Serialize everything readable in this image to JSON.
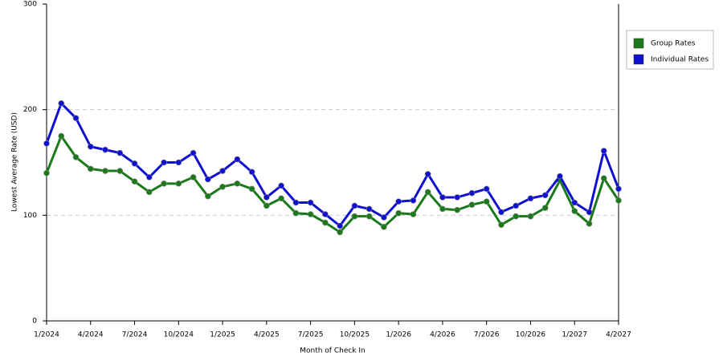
{
  "chart_data": {
    "type": "line",
    "x_label": "Month of Check In",
    "y_label": "Lowest Average Rate (USD)",
    "categories": [
      "1/2024",
      null,
      null,
      "4/2024",
      null,
      null,
      "7/2024",
      null,
      null,
      "10/2024",
      null,
      null,
      "1/2025",
      null,
      null,
      "4/2025",
      null,
      null,
      "7/2025",
      null,
      null,
      "10/2025",
      null,
      null,
      "1/2026",
      null,
      null,
      "4/2026",
      null,
      null,
      "7/2026",
      null,
      null,
      "10/2026",
      null,
      null,
      "1/2027",
      null,
      null,
      "4/2027"
    ],
    "series": [
      {
        "name": "Group Rates",
        "color": "#1a7a1a",
        "values": [
          140,
          175,
          155,
          144,
          142,
          142,
          132,
          122,
          130,
          130,
          136,
          118,
          127,
          130,
          125,
          109,
          116,
          102,
          101,
          93,
          84,
          99,
          99,
          89,
          102,
          101,
          122,
          106,
          105,
          110,
          113,
          91,
          99,
          99,
          107,
          133,
          104,
          92,
          135,
          114
        ]
      },
      {
        "name": "Individual Rates",
        "color": "#1010d0",
        "values": [
          168,
          206,
          192,
          165,
          162,
          159,
          149,
          136,
          150,
          150,
          159,
          134,
          142,
          153,
          141,
          117,
          128,
          112,
          112,
          101,
          90,
          109,
          106,
          98,
          113,
          114,
          139,
          117,
          117,
          121,
          125,
          103,
          109,
          116,
          119,
          137,
          112,
          103,
          161,
          125
        ]
      }
    ],
    "ylim": [
      0,
      300
    ],
    "yticks": [
      0,
      100,
      200,
      300
    ],
    "grid": true
  }
}
